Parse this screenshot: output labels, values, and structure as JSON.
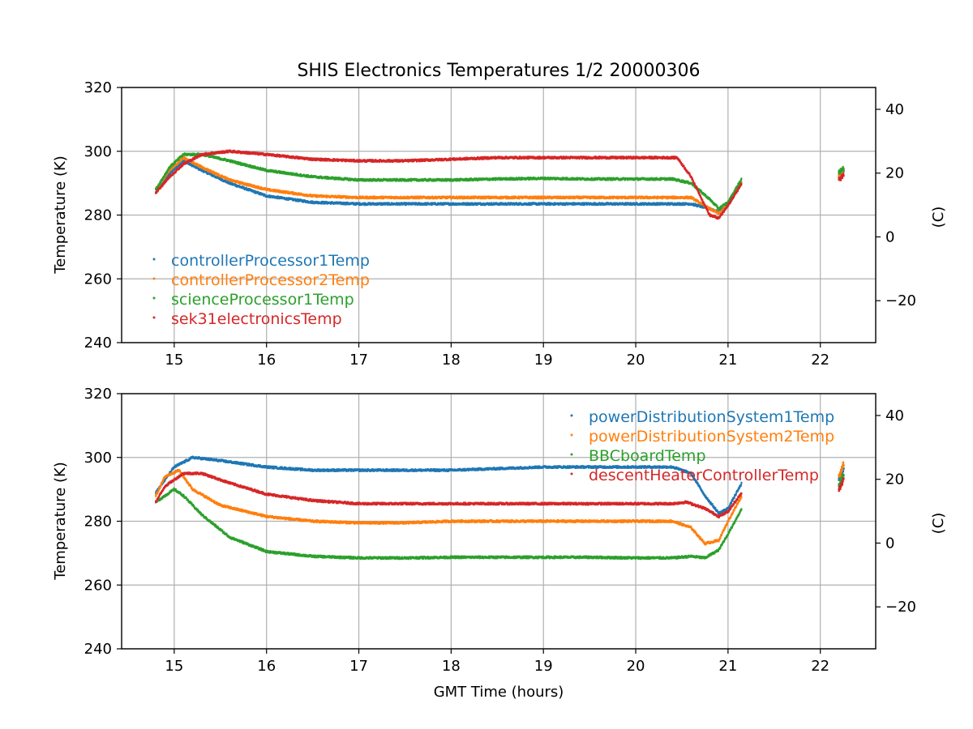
{
  "chart_data": [
    {
      "type": "scatter",
      "title": "SHIS Electronics Temperatures 1/2 20000306",
      "xlabel": "",
      "ylabel": "Temperature (K)",
      "ylabel_right": "(C)",
      "xlim": [
        14.43,
        22.6
      ],
      "ylim": [
        240,
        320
      ],
      "ylim_right": [
        -33.15,
        46.85
      ],
      "xticks": [
        "15",
        "16",
        "17",
        "18",
        "19",
        "20",
        "21",
        "22"
      ],
      "yticks": [
        "240",
        "260",
        "280",
        "300",
        "320"
      ],
      "yticks_right": [
        "−20",
        "0",
        "20",
        "40"
      ],
      "legend_position": "center-left",
      "series": [
        {
          "name": "controllerProcessor1Temp",
          "color": "#1f77b4",
          "x": [
            14.8,
            14.95,
            15.1,
            15.3,
            15.6,
            16.0,
            16.5,
            17.0,
            17.5,
            18.0,
            18.5,
            19.0,
            19.5,
            20.0,
            20.4,
            20.6,
            20.8,
            20.9,
            21.0,
            21.15,
            22.2,
            22.25
          ],
          "y": [
            287,
            293,
            297,
            294,
            290,
            286,
            284,
            283.5,
            283.5,
            283.5,
            283.5,
            283.5,
            283.5,
            283.5,
            283.5,
            283.5,
            282,
            281,
            283,
            290,
            292,
            294
          ]
        },
        {
          "name": "controllerProcessor2Temp",
          "color": "#ff7f0e",
          "x": [
            14.8,
            14.95,
            15.1,
            15.3,
            15.6,
            16.0,
            16.5,
            17.0,
            17.5,
            18.0,
            18.5,
            19.0,
            19.5,
            20.0,
            20.4,
            20.6,
            20.8,
            20.9,
            21.0,
            21.15,
            22.2,
            22.25
          ],
          "y": [
            288,
            294,
            298,
            295,
            291,
            288,
            286,
            285.5,
            285.5,
            285.5,
            285.5,
            285.5,
            285.5,
            285.5,
            285.5,
            285.5,
            282,
            280.5,
            283,
            290.5,
            292.5,
            294.5
          ]
        },
        {
          "name": "scienceProcessor1Temp",
          "color": "#2ca02c",
          "x": [
            14.8,
            14.95,
            15.1,
            15.3,
            15.6,
            16.0,
            16.5,
            17.0,
            17.5,
            18.0,
            18.5,
            19.0,
            19.5,
            20.0,
            20.4,
            20.6,
            20.8,
            20.9,
            21.0,
            21.15,
            22.2,
            22.25
          ],
          "y": [
            288,
            295,
            299,
            299,
            297,
            294,
            292,
            291,
            291,
            291,
            291.3,
            291.5,
            291.3,
            291.3,
            291.3,
            290,
            285,
            282,
            284,
            291.5,
            293,
            295
          ]
        },
        {
          "name": "sek31electronicsTemp",
          "color": "#d62728",
          "x": [
            14.8,
            14.95,
            15.1,
            15.3,
            15.6,
            16.0,
            16.5,
            17.0,
            17.5,
            18.0,
            18.5,
            19.0,
            19.5,
            20.0,
            20.45,
            20.6,
            20.8,
            20.9,
            21.0,
            21.15,
            22.2,
            22.25
          ],
          "y": [
            287,
            292,
            296,
            299,
            300,
            299,
            297.5,
            297,
            297,
            297.5,
            298,
            298,
            298,
            298,
            298,
            292,
            280,
            279,
            283,
            290,
            291,
            293
          ]
        }
      ]
    },
    {
      "type": "scatter",
      "title": "",
      "xlabel": "GMT Time (hours)",
      "ylabel": "Temperature (K)",
      "ylabel_right": "(C)",
      "xlim": [
        14.43,
        22.6
      ],
      "ylim": [
        240,
        320
      ],
      "ylim_right": [
        -33.15,
        46.85
      ],
      "xticks": [
        "15",
        "16",
        "17",
        "18",
        "19",
        "20",
        "21",
        "22"
      ],
      "yticks": [
        "240",
        "260",
        "280",
        "300",
        "320"
      ],
      "yticks_right": [
        "−20",
        "0",
        "20",
        "40"
      ],
      "legend_position": "top-right",
      "series": [
        {
          "name": "powerDistributionSystem1Temp",
          "color": "#1f77b4",
          "x": [
            14.8,
            15.0,
            15.2,
            15.5,
            16.0,
            16.5,
            17.0,
            17.5,
            18.0,
            18.5,
            19.0,
            19.5,
            20.0,
            20.4,
            20.6,
            20.75,
            20.9,
            21.0,
            21.15,
            22.2,
            22.25
          ],
          "y": [
            289,
            297,
            300,
            299,
            297,
            296,
            296,
            296,
            296,
            296.5,
            297,
            297,
            297,
            297,
            295,
            288,
            282.5,
            284,
            292,
            293,
            296
          ]
        },
        {
          "name": "powerDistributionSystem2Temp",
          "color": "#ff7f0e",
          "x": [
            14.8,
            14.9,
            15.05,
            15.2,
            15.5,
            16.0,
            16.5,
            17.0,
            17.5,
            18.0,
            18.5,
            19.0,
            19.5,
            20.0,
            20.4,
            20.6,
            20.75,
            20.9,
            21.0,
            21.15,
            22.2,
            22.25
          ],
          "y": [
            288,
            294,
            296,
            290,
            285,
            281.5,
            280,
            279.5,
            279.5,
            280,
            280,
            280,
            280,
            280,
            280,
            278,
            273,
            274,
            280,
            288,
            294,
            298
          ]
        },
        {
          "name": "BBCboardTemp",
          "color": "#2ca02c",
          "x": [
            14.8,
            14.9,
            15.0,
            15.1,
            15.3,
            15.6,
            16.0,
            16.5,
            17.0,
            17.5,
            18.0,
            18.5,
            19.0,
            19.5,
            20.0,
            20.4,
            20.6,
            20.75,
            20.9,
            21.0,
            21.15,
            22.2,
            22.25
          ],
          "y": [
            286,
            288,
            290,
            288,
            282,
            275,
            270.5,
            269,
            268.5,
            268.5,
            268.7,
            268.7,
            268.7,
            268.7,
            268.5,
            268.5,
            269,
            268.5,
            271,
            276,
            284,
            291,
            295
          ]
        },
        {
          "name": "descentHeaterControllerTemp",
          "color": "#d62728",
          "x": [
            14.8,
            14.9,
            15.1,
            15.3,
            15.6,
            16.0,
            16.5,
            17.0,
            17.5,
            18.0,
            18.5,
            19.0,
            19.5,
            20.0,
            20.4,
            20.55,
            20.75,
            20.9,
            21.0,
            21.15,
            22.2,
            22.25
          ],
          "y": [
            286,
            291,
            295,
            295,
            292,
            288.5,
            286.5,
            285.5,
            285.5,
            285.5,
            285.5,
            285.5,
            285.5,
            285.5,
            285.5,
            286,
            284,
            281.5,
            283,
            289,
            290,
            293
          ]
        }
      ]
    }
  ]
}
